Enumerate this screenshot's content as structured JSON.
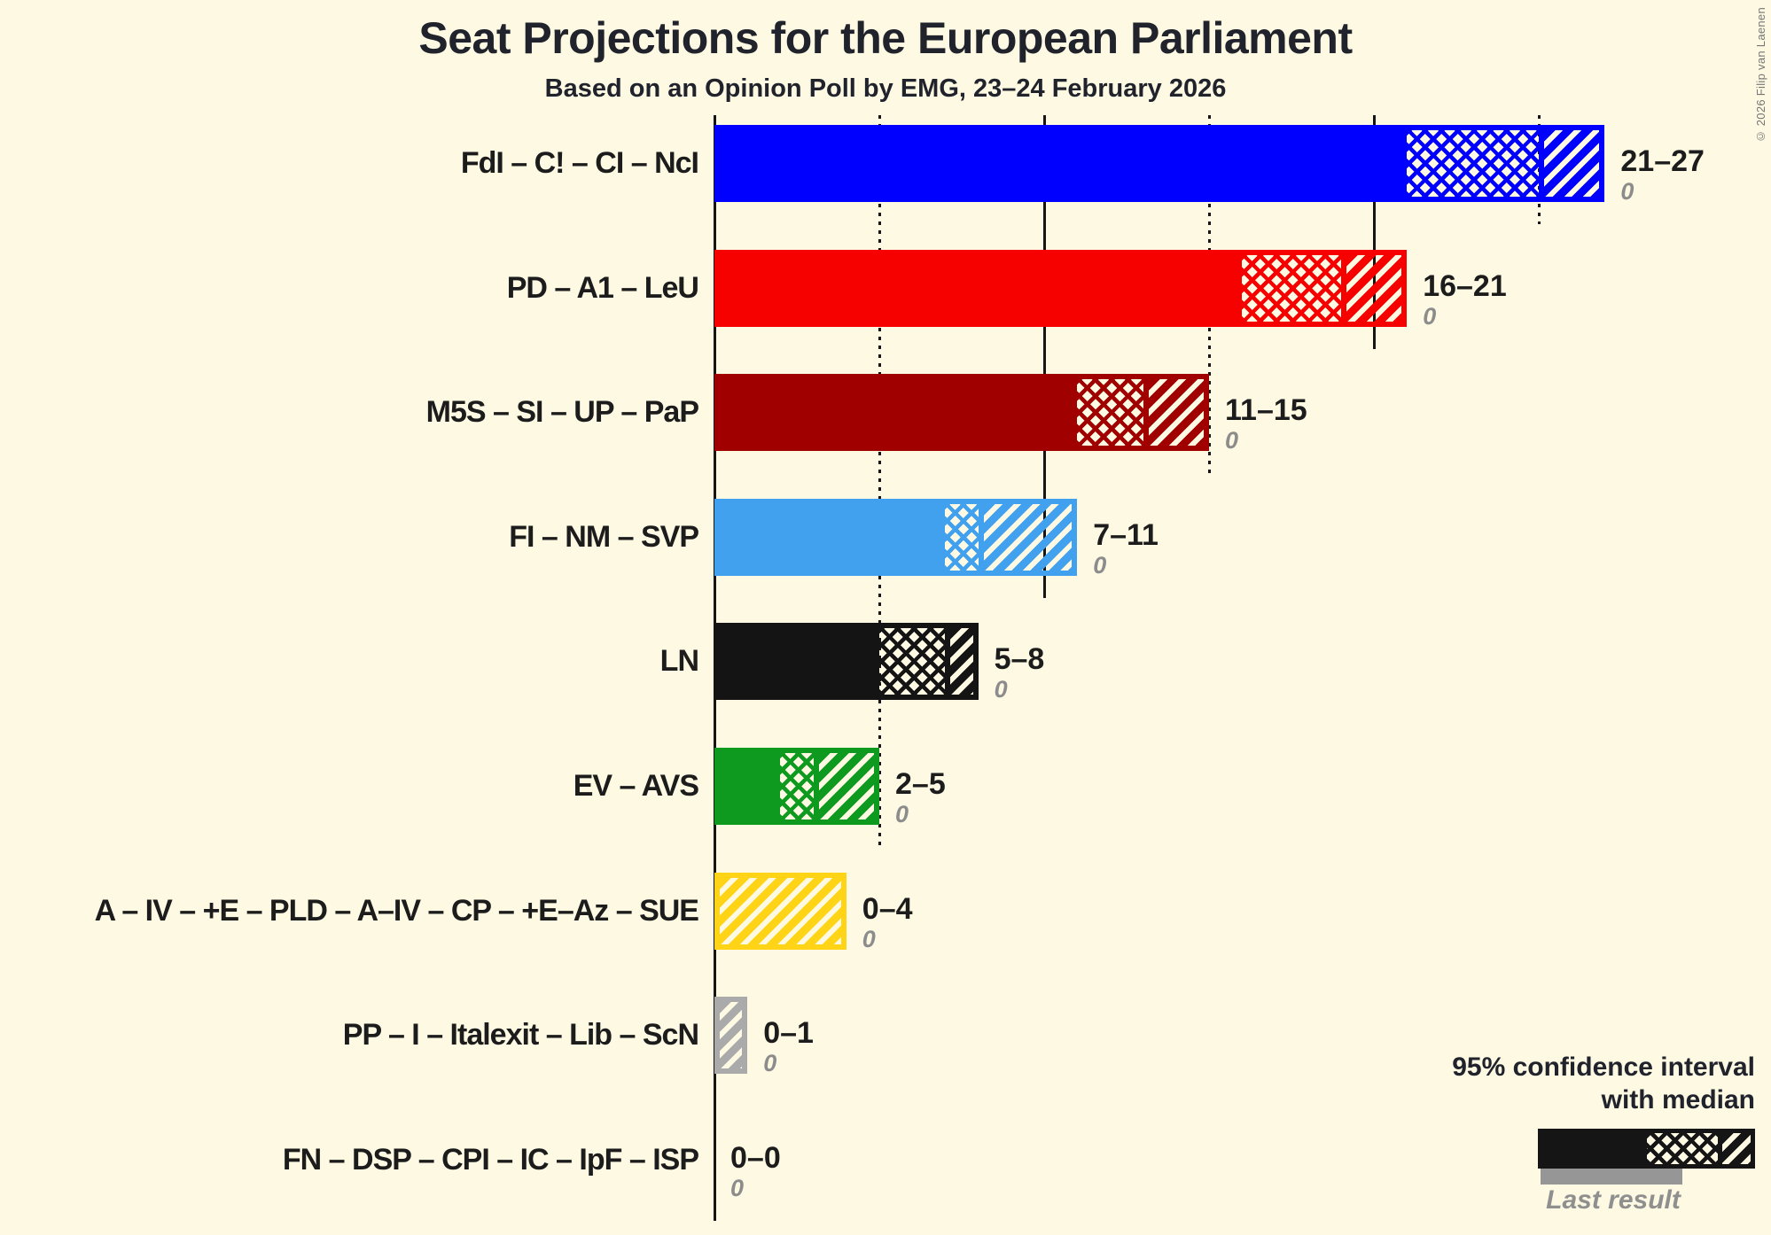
{
  "title": "Seat Projections for the European Parliament",
  "subtitle": "Based on an Opinion Poll by EMG, 23–24 February 2026",
  "copyright": "© 2026 Filip van Laenen",
  "legend": {
    "ci_label_line1": "95% confidence interval",
    "ci_label_line2": "with median",
    "last_result_label": "Last result"
  },
  "colors": {
    "background": "#FDF9E2",
    "grid": "#151515",
    "text": "#1C1C1C",
    "muted": "#8C8C8C"
  },
  "chart_data": {
    "type": "bar",
    "orientation": "horizontal",
    "unit": "seats",
    "axis": {
      "min": 0,
      "max": 27,
      "tick_step": 5,
      "solid_line_step": 10,
      "gridlines_at": [
        0,
        5,
        10,
        15,
        20,
        25
      ]
    },
    "series": [
      {
        "label": "FdI – C! – CI – NcI",
        "color": "#0000FF",
        "ci_low": 21,
        "median": 25,
        "ci_high": 27,
        "range_label": "21–27",
        "last_result": 0
      },
      {
        "label": "PD – A1 – LeU",
        "color": "#F60000",
        "ci_low": 16,
        "median": 19,
        "ci_high": 21,
        "range_label": "16–21",
        "last_result": 0
      },
      {
        "label": "M5S – SI – UP – PaP",
        "color": "#A00000",
        "ci_low": 11,
        "median": 13,
        "ci_high": 15,
        "range_label": "11–15",
        "last_result": 0
      },
      {
        "label": "FI – NM – SVP",
        "color": "#42A1EE",
        "ci_low": 7,
        "median": 8,
        "ci_high": 11,
        "range_label": "7–11",
        "last_result": 0
      },
      {
        "label": "LN",
        "color": "#141414",
        "ci_low": 5,
        "median": 7,
        "ci_high": 8,
        "range_label": "5–8",
        "last_result": 0
      },
      {
        "label": "EV – AVS",
        "color": "#0D9A1F",
        "ci_low": 2,
        "median": 3,
        "ci_high": 5,
        "range_label": "2–5",
        "last_result": 0
      },
      {
        "label": "A – IV – +E – PLD – A–IV – CP – +E–Az – SUE",
        "color": "#FFD417",
        "ci_low": 0,
        "median": 0,
        "ci_high": 4,
        "range_label": "0–4",
        "last_result": 0
      },
      {
        "label": "PP – I – Italexit – Lib – ScN",
        "color": "#AAAAAA",
        "ci_low": 0,
        "median": 0,
        "ci_high": 1,
        "range_label": "0–1",
        "last_result": 0
      },
      {
        "label": "FN – DSP – CPI – IC – IpF – ISP",
        "color": "#141414",
        "ci_low": 0,
        "median": 0,
        "ci_high": 0,
        "range_label": "0–0",
        "last_result": 0
      }
    ]
  }
}
